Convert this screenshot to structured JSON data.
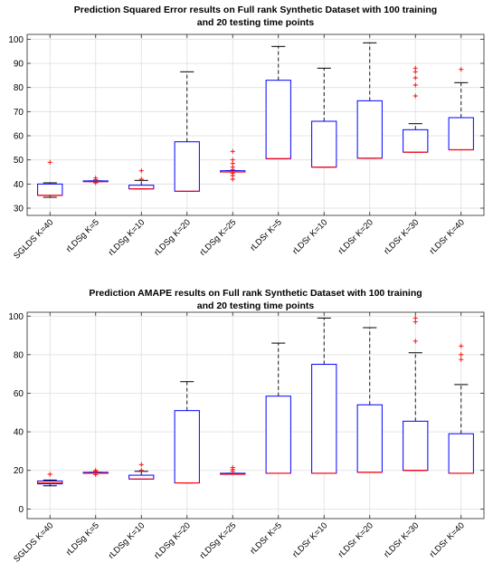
{
  "chart_data": [
    {
      "type": "box",
      "title_line1": "Prediction Squared Error results on Full rank Synthetic Dataset with 100 training",
      "title_line2": "and 20 testing time points",
      "categories": [
        "SGLDS K=40",
        "rLDSg K=5",
        "rLDSg K=10",
        "rLDSg K=20",
        "rLDSg K=25",
        "rLDSr K=5",
        "rLDSr K=10",
        "rLDSr K=20",
        "rLDSr K=30",
        "rLDSr K=40"
      ],
      "ylim": [
        27,
        102
      ],
      "yticks": [
        30,
        40,
        50,
        60,
        70,
        80,
        90,
        100
      ],
      "grid": true,
      "boxes": [
        {
          "whisker_low": 34.5,
          "q1": 35.3,
          "median": 35.3,
          "q3": 40.0,
          "whisker_high": 40.5,
          "outliers": [
            49
          ]
        },
        {
          "whisker_low": 41.0,
          "q1": 41.0,
          "median": 41.0,
          "q3": 41.3,
          "whisker_high": 41.3,
          "outliers": [
            40.5,
            41.8,
            42.5
          ]
        },
        {
          "whisker_low": 38.0,
          "q1": 38.0,
          "median": 38.0,
          "q3": 39.5,
          "whisker_high": 41.5,
          "outliers": [
            42,
            45.5
          ]
        },
        {
          "whisker_low": 37.0,
          "q1": 37.0,
          "median": 37.0,
          "q3": 57.5,
          "whisker_high": 86.5,
          "outliers": []
        },
        {
          "whisker_low": 45.0,
          "q1": 45.0,
          "median": 45.0,
          "q3": 45.5,
          "whisker_high": 45.5,
          "outliers": [
            42,
            43.5,
            44.5,
            46,
            47,
            48.5,
            50,
            53.5
          ]
        },
        {
          "whisker_low": 50.5,
          "q1": 50.5,
          "median": 50.5,
          "q3": 83.0,
          "whisker_high": 97.0,
          "outliers": []
        },
        {
          "whisker_low": 47.0,
          "q1": 47.0,
          "median": 47.0,
          "q3": 66.0,
          "whisker_high": 88.0,
          "outliers": []
        },
        {
          "whisker_low": 50.7,
          "q1": 50.7,
          "median": 50.7,
          "q3": 74.5,
          "whisker_high": 98.5,
          "outliers": []
        },
        {
          "whisker_low": 53.2,
          "q1": 53.2,
          "median": 53.2,
          "q3": 62.5,
          "whisker_high": 65.0,
          "outliers": [
            76.5,
            81,
            84,
            86.5,
            88
          ]
        },
        {
          "whisker_low": 54.2,
          "q1": 54.2,
          "median": 54.2,
          "q3": 67.5,
          "whisker_high": 82.0,
          "outliers": [
            87.5
          ]
        }
      ]
    },
    {
      "type": "box",
      "title_line1": "Prediction AMAPE results on Full rank Synthetic Dataset with 100 training",
      "title_line2": "and 20 testing time points",
      "categories": [
        "SGLDS K=40",
        "rLDSg K=5",
        "rLDSg K=10",
        "rLDSg K=20",
        "rLDSg K=25",
        "rLDSr K=5",
        "rLDSr K=10",
        "rLDSr K=20",
        "rLDSr K=30",
        "rLDSr K=40"
      ],
      "ylim": [
        -5,
        102
      ],
      "yticks": [
        0,
        20,
        40,
        60,
        80,
        100
      ],
      "grid": true,
      "boxes": [
        {
          "whisker_low": 12.0,
          "q1": 13.0,
          "median": 13.5,
          "q3": 14.5,
          "whisker_high": 15.0,
          "outliers": [
            18
          ]
        },
        {
          "whisker_low": 18.5,
          "q1": 18.5,
          "median": 18.5,
          "q3": 19.0,
          "whisker_high": 19.0,
          "outliers": [
            17.8,
            19.5,
            20
          ]
        },
        {
          "whisker_low": 15.5,
          "q1": 15.5,
          "median": 15.5,
          "q3": 17.5,
          "whisker_high": 19.5,
          "outliers": [
            20,
            23
          ]
        },
        {
          "whisker_low": 13.5,
          "q1": 13.5,
          "median": 13.5,
          "q3": 51.0,
          "whisker_high": 66.0,
          "outliers": []
        },
        {
          "whisker_low": 18.0,
          "q1": 18.0,
          "median": 18.0,
          "q3": 18.5,
          "whisker_high": 18.5,
          "outliers": [
            19.5,
            20.5,
            21.5
          ]
        },
        {
          "whisker_low": 18.5,
          "q1": 18.5,
          "median": 18.5,
          "q3": 58.5,
          "whisker_high": 86.0,
          "outliers": []
        },
        {
          "whisker_low": 18.5,
          "q1": 18.5,
          "median": 18.5,
          "q3": 75.0,
          "whisker_high": 99.0,
          "outliers": []
        },
        {
          "whisker_low": 19.0,
          "q1": 19.0,
          "median": 19.0,
          "q3": 54.0,
          "whisker_high": 94.0,
          "outliers": []
        },
        {
          "whisker_low": 20.0,
          "q1": 20.0,
          "median": 20.0,
          "q3": 45.5,
          "whisker_high": 81.0,
          "outliers": [
            87,
            97,
            99
          ]
        },
        {
          "whisker_low": 18.5,
          "q1": 18.5,
          "median": 18.5,
          "q3": 39.0,
          "whisker_high": 64.5,
          "outliers": [
            77.5,
            80,
            84.5
          ]
        }
      ]
    }
  ],
  "colors": {
    "box": "#0000ff",
    "median": "#ff0000",
    "whisker": "#000000",
    "outlier": "#ff0000",
    "grid": "#dedede",
    "axis": "#262626"
  }
}
